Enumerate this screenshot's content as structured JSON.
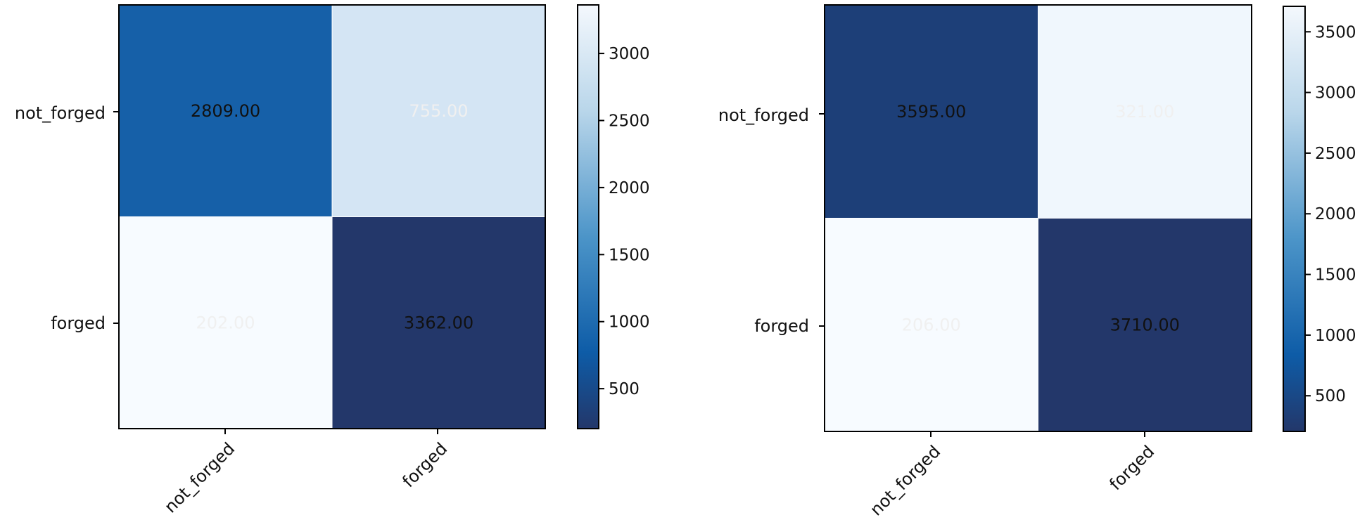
{
  "chart_data": [
    {
      "type": "heatmap",
      "row_labels": [
        "not_forged",
        "forged"
      ],
      "col_labels": [
        "not_forged",
        "forged"
      ],
      "values": [
        [
          2809,
          755
        ],
        [
          202,
          3362
        ]
      ],
      "cell_labels": [
        [
          "2809.00",
          "755.00"
        ],
        [
          "202.00",
          "3362.00"
        ]
      ],
      "colormap": "Blues",
      "color_range": [
        202,
        3362
      ],
      "colorbar_ticks": [
        "500",
        "1000",
        "1500",
        "2000",
        "2500",
        "3000"
      ],
      "colorbar_tick_values": [
        500,
        1000,
        1500,
        2000,
        2500,
        3000
      ]
    },
    {
      "type": "heatmap",
      "row_labels": [
        "not_forged",
        "forged"
      ],
      "col_labels": [
        "not_forged",
        "forged"
      ],
      "values": [
        [
          3595,
          321
        ],
        [
          206,
          3710
        ]
      ],
      "cell_labels": [
        [
          "3595.00",
          "321.00"
        ],
        [
          "206.00",
          "3710.00"
        ]
      ],
      "colormap": "Blues",
      "color_range": [
        206,
        3710
      ],
      "colorbar_ticks": [
        "500",
        "1000",
        "1500",
        "2000",
        "2500",
        "3000",
        "3500"
      ],
      "colorbar_tick_values": [
        500,
        1000,
        1500,
        2000,
        2500,
        3000,
        3500
      ]
    }
  ],
  "colors": {
    "blues_dark": "#23376a",
    "blues_mid_dark": "#0e5ca7",
    "blues_mid": "#4b94c8",
    "blues_light": "#b9d6ea",
    "blues_pale": "#f4f8fd",
    "text_dark": "#111111",
    "text_light": "#f0f0f0"
  }
}
